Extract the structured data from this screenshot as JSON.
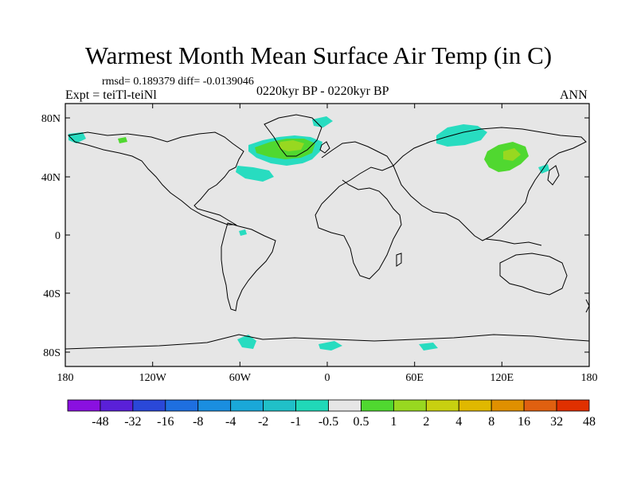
{
  "title": "Warmest Month Mean Surface Air Temp (in C)",
  "stats": "rmsd= 0.189379 diff= -0.0139046",
  "expt": "Expt = teiTl-teiNl",
  "period": "0220kyr BP - 0220kyr BP",
  "season": "ANN",
  "lat_ticks": [
    "80N",
    "40N",
    "0",
    "40S",
    "80S"
  ],
  "lon_ticks": [
    "180",
    "120W",
    "60W",
    "0",
    "60E",
    "120E",
    "180"
  ],
  "colorbar": {
    "labels": [
      "-48",
      "-32",
      "-16",
      "-8",
      "-4",
      "-2",
      "-1",
      "-0.5",
      "0.5",
      "1",
      "2",
      "4",
      "8",
      "16",
      "32",
      "48"
    ],
    "colors": [
      "#8a10e0",
      "#5a20d8",
      "#2a48d8",
      "#1e6fe0",
      "#1a8ee0",
      "#1aa8d8",
      "#20c0c8",
      "#20d8b8",
      "#e6e6e6",
      "#50d830",
      "#98d820",
      "#c8d010",
      "#e0b800",
      "#e09000",
      "#e06010",
      "#e03000"
    ]
  },
  "map_colors": {
    "land_fill": "#e6e6e6",
    "neg_anomaly": "#28dcc0",
    "pos_anomaly_low": "#50d830",
    "pos_anomaly_mid": "#98d820"
  }
}
